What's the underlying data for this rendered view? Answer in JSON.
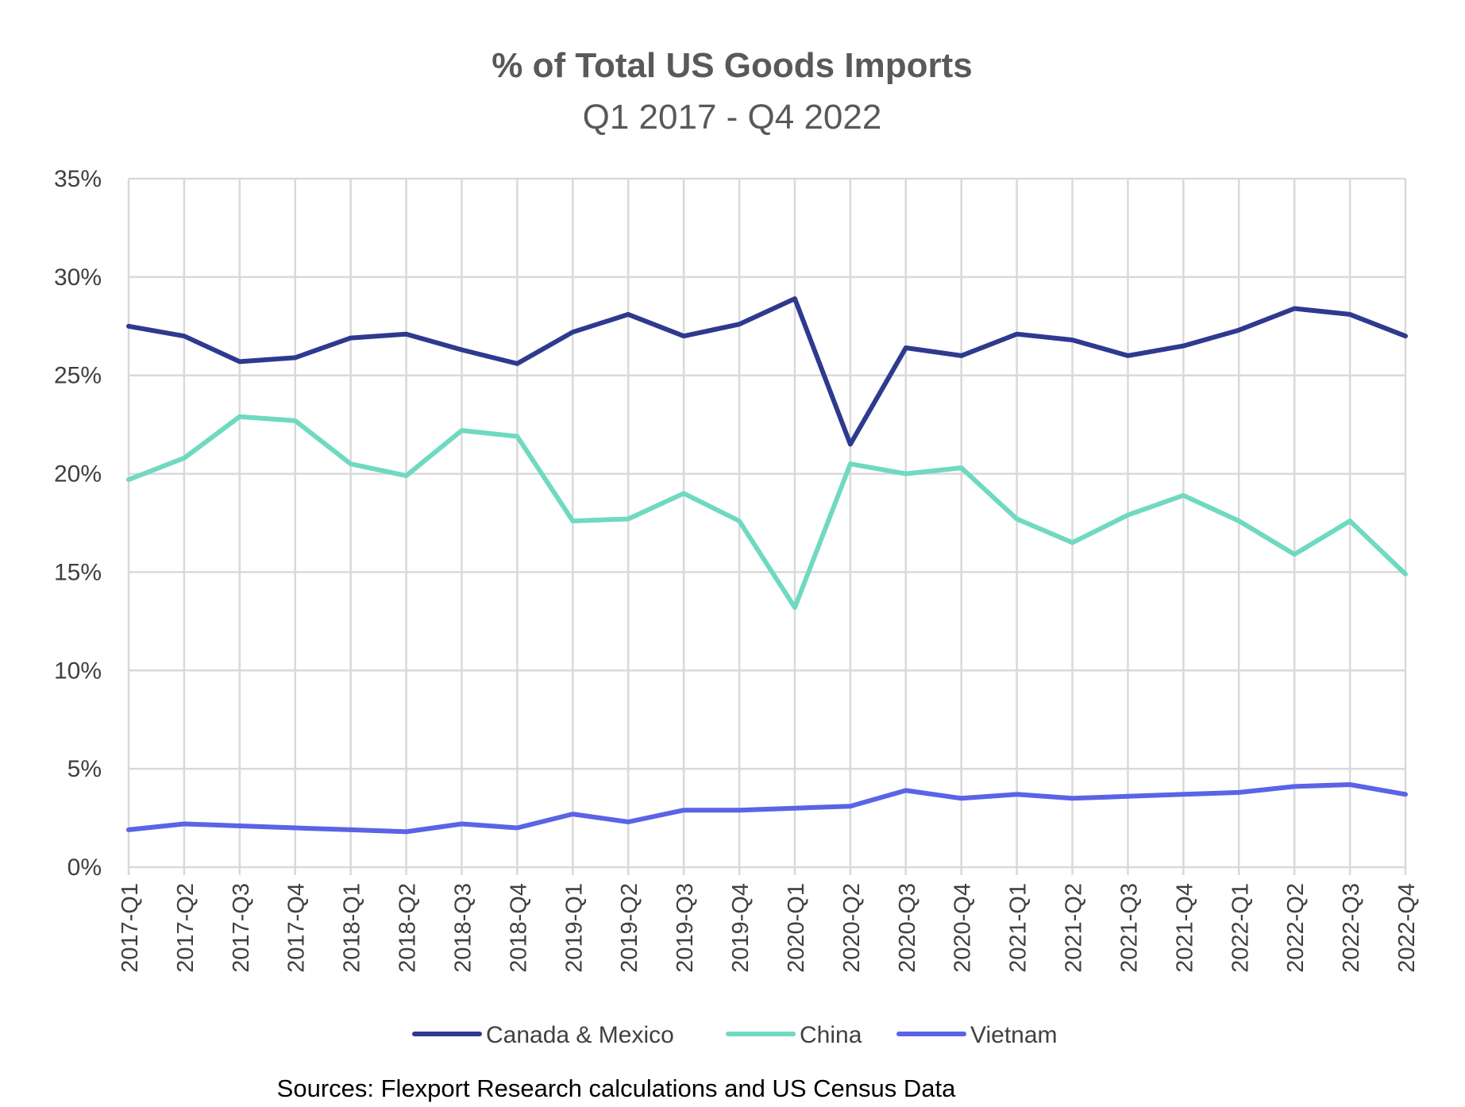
{
  "chart_data": {
    "type": "line",
    "title": "% of Total US Goods Imports",
    "subtitle": "Q1 2017 - Q4 2022",
    "xlabel": "",
    "ylabel": "",
    "ylim": [
      0,
      35
    ],
    "y_ticks": [
      0,
      5,
      10,
      15,
      20,
      25,
      30,
      35
    ],
    "y_tick_labels": [
      "0%",
      "5%",
      "10%",
      "15%",
      "20%",
      "25%",
      "30%",
      "35%"
    ],
    "grid": true,
    "legend_position": "bottom",
    "categories": [
      "2017-Q1",
      "2017-Q2",
      "2017-Q3",
      "2017-Q4",
      "2018-Q1",
      "2018-Q2",
      "2018-Q3",
      "2018-Q4",
      "2019-Q1",
      "2019-Q2",
      "2019-Q3",
      "2019-Q4",
      "2020-Q1",
      "2020-Q2",
      "2020-Q3",
      "2020-Q4",
      "2021-Q1",
      "2021-Q2",
      "2021-Q3",
      "2021-Q4",
      "2022-Q1",
      "2022-Q2",
      "2022-Q3",
      "2022-Q4"
    ],
    "series": [
      {
        "name": "Canada & Mexico",
        "color": "#2e3a8f",
        "values": [
          27.5,
          27.0,
          25.7,
          25.9,
          26.9,
          27.1,
          26.3,
          25.6,
          27.2,
          28.1,
          27.0,
          27.6,
          28.9,
          21.5,
          26.4,
          26.0,
          27.1,
          26.8,
          26.0,
          26.5,
          27.3,
          28.4,
          28.1,
          27.0
        ]
      },
      {
        "name": "China",
        "color": "#6fd9c1",
        "values": [
          19.7,
          20.8,
          22.9,
          22.7,
          20.5,
          19.9,
          22.2,
          21.9,
          17.6,
          17.7,
          19.0,
          17.6,
          13.2,
          20.5,
          20.0,
          20.3,
          17.7,
          16.5,
          17.9,
          18.9,
          17.6,
          15.9,
          17.6,
          14.9
        ]
      },
      {
        "name": "Vietnam",
        "color": "#5b63e6",
        "values": [
          1.9,
          2.2,
          2.1,
          2.0,
          1.9,
          1.8,
          2.2,
          2.0,
          2.7,
          2.3,
          2.9,
          2.9,
          3.0,
          3.1,
          3.9,
          3.5,
          3.7,
          3.5,
          3.6,
          3.7,
          3.8,
          4.1,
          4.2,
          3.7
        ]
      }
    ],
    "source_note": "Sources: Flexport Research calculations and US Census Data"
  }
}
